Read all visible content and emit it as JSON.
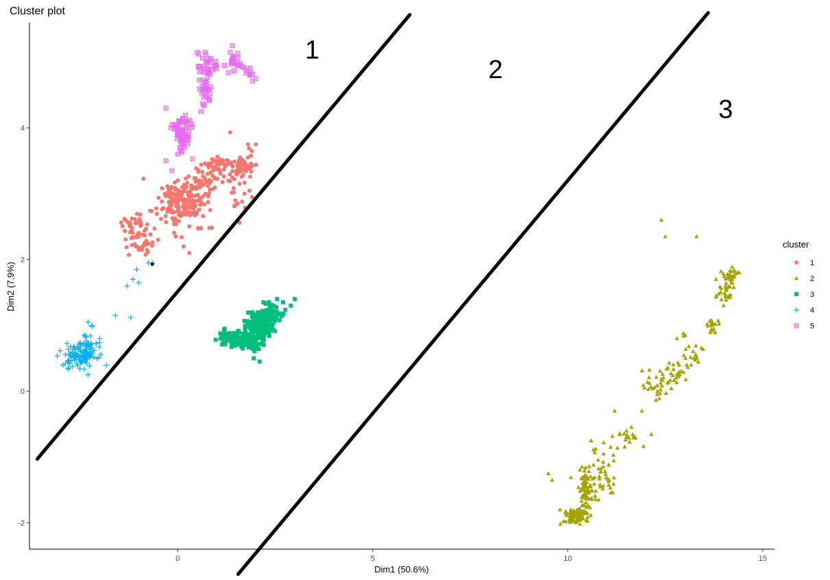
{
  "chart_data": {
    "type": "scatter",
    "title": "Cluster plot",
    "xlabel": "Dim1 (50.6%)",
    "ylabel": "Dim2 (7.9%)",
    "xlim": [
      -3.8,
      15.3
    ],
    "ylim": [
      -2.4,
      5.6
    ],
    "xticks": [
      0,
      5,
      10,
      15
    ],
    "xtick_labels": [
      "0",
      "5",
      "10",
      "15"
    ],
    "yticks": [
      -2,
      0,
      2,
      4
    ],
    "ytick_labels": [
      "-2",
      "0",
      "2",
      "4"
    ],
    "grid": false,
    "legend": {
      "title": "cluster",
      "position": "right",
      "entries": [
        "1",
        "2",
        "3",
        "4",
        "5"
      ]
    },
    "series": [
      {
        "name": "1",
        "color": "#F8766D",
        "marker": "circle",
        "regions": [
          {
            "center": [
              0.1,
              2.85
            ],
            "spread": [
              0.5,
              0.3
            ],
            "count": 190
          },
          {
            "center": [
              -1.1,
              2.5
            ],
            "spread": [
              0.3,
              0.2
            ],
            "count": 40
          },
          {
            "center": [
              -0.9,
              2.2
            ],
            "spread": [
              0.3,
              0.1
            ],
            "count": 20
          },
          {
            "center": [
              0.7,
              3.2
            ],
            "spread": [
              0.4,
              0.15
            ],
            "count": 40
          },
          {
            "center": [
              1.0,
              3.45
            ],
            "spread": [
              0.4,
              0.1
            ],
            "count": 40
          },
          {
            "center": [
              1.6,
              3.4
            ],
            "spread": [
              0.3,
              0.1
            ],
            "count": 25
          },
          {
            "center": [
              1.65,
              3.4
            ],
            "spread": [
              0.1,
              0.08
            ],
            "count": 15
          },
          {
            "center": [
              1.6,
              3.1
            ],
            "spread": [
              0.5,
              0.4
            ],
            "count": 30
          }
        ],
        "points": [
          [
            1.3,
            3.2
          ],
          [
            1.5,
            3.3
          ],
          [
            1.7,
            3.45
          ],
          [
            1.8,
            3.55
          ],
          [
            1.9,
            3.65
          ],
          [
            2.0,
            3.75
          ],
          [
            1.8,
            3.75
          ],
          [
            1.6,
            3.55
          ],
          [
            1.4,
            3.25
          ],
          [
            0.3,
            2.1
          ],
          [
            0.15,
            2.2
          ],
          [
            -0.05,
            2.35
          ],
          [
            -0.5,
            2.3
          ]
        ]
      },
      {
        "name": "2",
        "color": "#A3A500",
        "marker": "triangle",
        "regions": [
          {
            "center": [
              10.2,
              -1.9
            ],
            "spread": [
              0.25,
              0.1
            ],
            "count": 90
          },
          {
            "center": [
              10.5,
              -1.5
            ],
            "spread": [
              0.2,
              0.3
            ],
            "count": 80
          },
          {
            "center": [
              10.9,
              -1.2
            ],
            "spread": [
              0.3,
              0.3
            ],
            "count": 40
          },
          {
            "center": [
              11.6,
              -0.7
            ],
            "spread": [
              0.4,
              0.2
            ],
            "count": 20
          },
          {
            "center": [
              12.3,
              0.1
            ],
            "spread": [
              0.35,
              0.2
            ],
            "count": 30
          },
          {
            "center": [
              12.8,
              0.3
            ],
            "spread": [
              0.2,
              0.15
            ],
            "count": 20
          },
          {
            "center": [
              13.2,
              0.6
            ],
            "spread": [
              0.3,
              0.3
            ],
            "count": 20
          },
          {
            "center": [
              13.7,
              1.0
            ],
            "spread": [
              0.15,
              0.1
            ],
            "count": 20
          },
          {
            "center": [
              14.05,
              1.5
            ],
            "spread": [
              0.15,
              0.2
            ],
            "count": 30
          },
          {
            "center": [
              14.2,
              1.75
            ],
            "spread": [
              0.15,
              0.1
            ],
            "count": 25
          }
        ],
        "points": [
          [
            12.4,
            2.6
          ],
          [
            12.5,
            2.35
          ],
          [
            13.3,
            2.35
          ],
          [
            9.5,
            -1.25
          ],
          [
            9.6,
            -1.35
          ],
          [
            9.8,
            -1.8
          ],
          [
            10.6,
            -0.75
          ],
          [
            11.1,
            -0.85
          ],
          [
            11.2,
            -0.3
          ],
          [
            11.5,
            -0.7
          ],
          [
            11.9,
            -0.3
          ],
          [
            12.3,
            0.0
          ],
          [
            12.8,
            0.8
          ],
          [
            13.05,
            0.4
          ],
          [
            13.8,
            1.7
          ],
          [
            14.4,
            1.8
          ]
        ]
      },
      {
        "name": "3",
        "color": "#00BF7D",
        "marker": "square",
        "regions": [
          {
            "center": [
              2.1,
              1.0
            ],
            "spread": [
              0.25,
              0.15
            ],
            "count": 200
          },
          {
            "center": [
              1.8,
              0.75
            ],
            "spread": [
              0.3,
              0.12
            ],
            "count": 100
          },
          {
            "center": [
              1.35,
              0.8
            ],
            "spread": [
              0.25,
              0.1
            ],
            "count": 50
          },
          {
            "center": [
              2.4,
              1.2
            ],
            "spread": [
              0.2,
              0.1
            ],
            "count": 60
          }
        ],
        "points": [
          [
            1.1,
            0.8
          ],
          [
            1.2,
            0.95
          ],
          [
            2.2,
            1.35
          ],
          [
            2.55,
            1.4
          ],
          [
            2.7,
            1.35
          ],
          [
            2.9,
            1.3
          ],
          [
            3.0,
            1.4
          ],
          [
            2.1,
            0.45
          ],
          [
            1.95,
            0.5
          ]
        ]
      },
      {
        "name": "4",
        "color": "#00B0F6",
        "marker": "plus",
        "regions": [
          {
            "center": [
              -2.5,
              0.55
            ],
            "spread": [
              0.35,
              0.15
            ],
            "count": 100
          },
          {
            "center": [
              -2.3,
              0.65
            ],
            "spread": [
              0.2,
              0.2
            ],
            "count": 30
          }
        ],
        "points": [
          [
            -2.3,
            1.05
          ],
          [
            -2.2,
            1.0
          ],
          [
            -2.4,
            0.85
          ],
          [
            -2.0,
            0.8
          ],
          [
            -1.6,
            1.15
          ],
          [
            -1.2,
            1.12
          ],
          [
            -1.3,
            1.6
          ],
          [
            -1.15,
            1.7
          ],
          [
            -1.05,
            1.85
          ],
          [
            -1.0,
            1.65
          ],
          [
            -0.75,
            1.95
          ],
          [
            -0.65,
            1.95
          ],
          [
            -2.3,
            0.25
          ],
          [
            -2.8,
            0.35
          ]
        ]
      },
      {
        "name": "5",
        "color": "#E76BF3",
        "marker": "square-cross",
        "regions": [
          {
            "center": [
              0.1,
              3.95
            ],
            "spread": [
              0.2,
              0.2
            ],
            "count": 50
          },
          {
            "center": [
              0.15,
              3.8
            ],
            "spread": [
              0.15,
              0.15
            ],
            "count": 20
          },
          {
            "center": [
              0.7,
              4.55
            ],
            "spread": [
              0.15,
              0.2
            ],
            "count": 30
          },
          {
            "center": [
              0.8,
              4.95
            ],
            "spread": [
              0.25,
              0.15
            ],
            "count": 30
          },
          {
            "center": [
              1.5,
              5.0
            ],
            "spread": [
              0.15,
              0.1
            ],
            "count": 20
          },
          {
            "center": [
              1.9,
              4.8
            ],
            "spread": [
              0.1,
              0.08
            ],
            "count": 8
          }
        ],
        "points": [
          [
            -0.3,
            3.5
          ],
          [
            -0.15,
            3.35
          ],
          [
            0.0,
            3.6
          ],
          [
            0.05,
            3.7
          ],
          [
            -0.3,
            4.3
          ],
          [
            0.2,
            4.1
          ],
          [
            0.6,
            4.25
          ],
          [
            1.4,
            5.25
          ],
          [
            1.35,
            5.15
          ],
          [
            0.5,
            5.15
          ],
          [
            0.7,
            5.15
          ],
          [
            1.2,
            4.95
          ],
          [
            2.0,
            4.75
          ]
        ]
      }
    ],
    "annotations": {
      "region_labels": [
        {
          "text": "1",
          "x": 3.45,
          "y": 5.2
        },
        {
          "text": "2",
          "x": 8.15,
          "y": 4.9
        },
        {
          "text": "3",
          "x": 14.05,
          "y": 4.3
        }
      ],
      "lines": [
        {
          "x1": -3.6,
          "y1": -1.03,
          "x2": 5.95,
          "y2": 5.72
        },
        {
          "x1": 1.55,
          "y1": -2.78,
          "x2": 13.6,
          "y2": 5.75
        }
      ],
      "marker_points": [
        {
          "x": -0.65,
          "y": 1.93,
          "color": "#000000"
        }
      ]
    }
  }
}
